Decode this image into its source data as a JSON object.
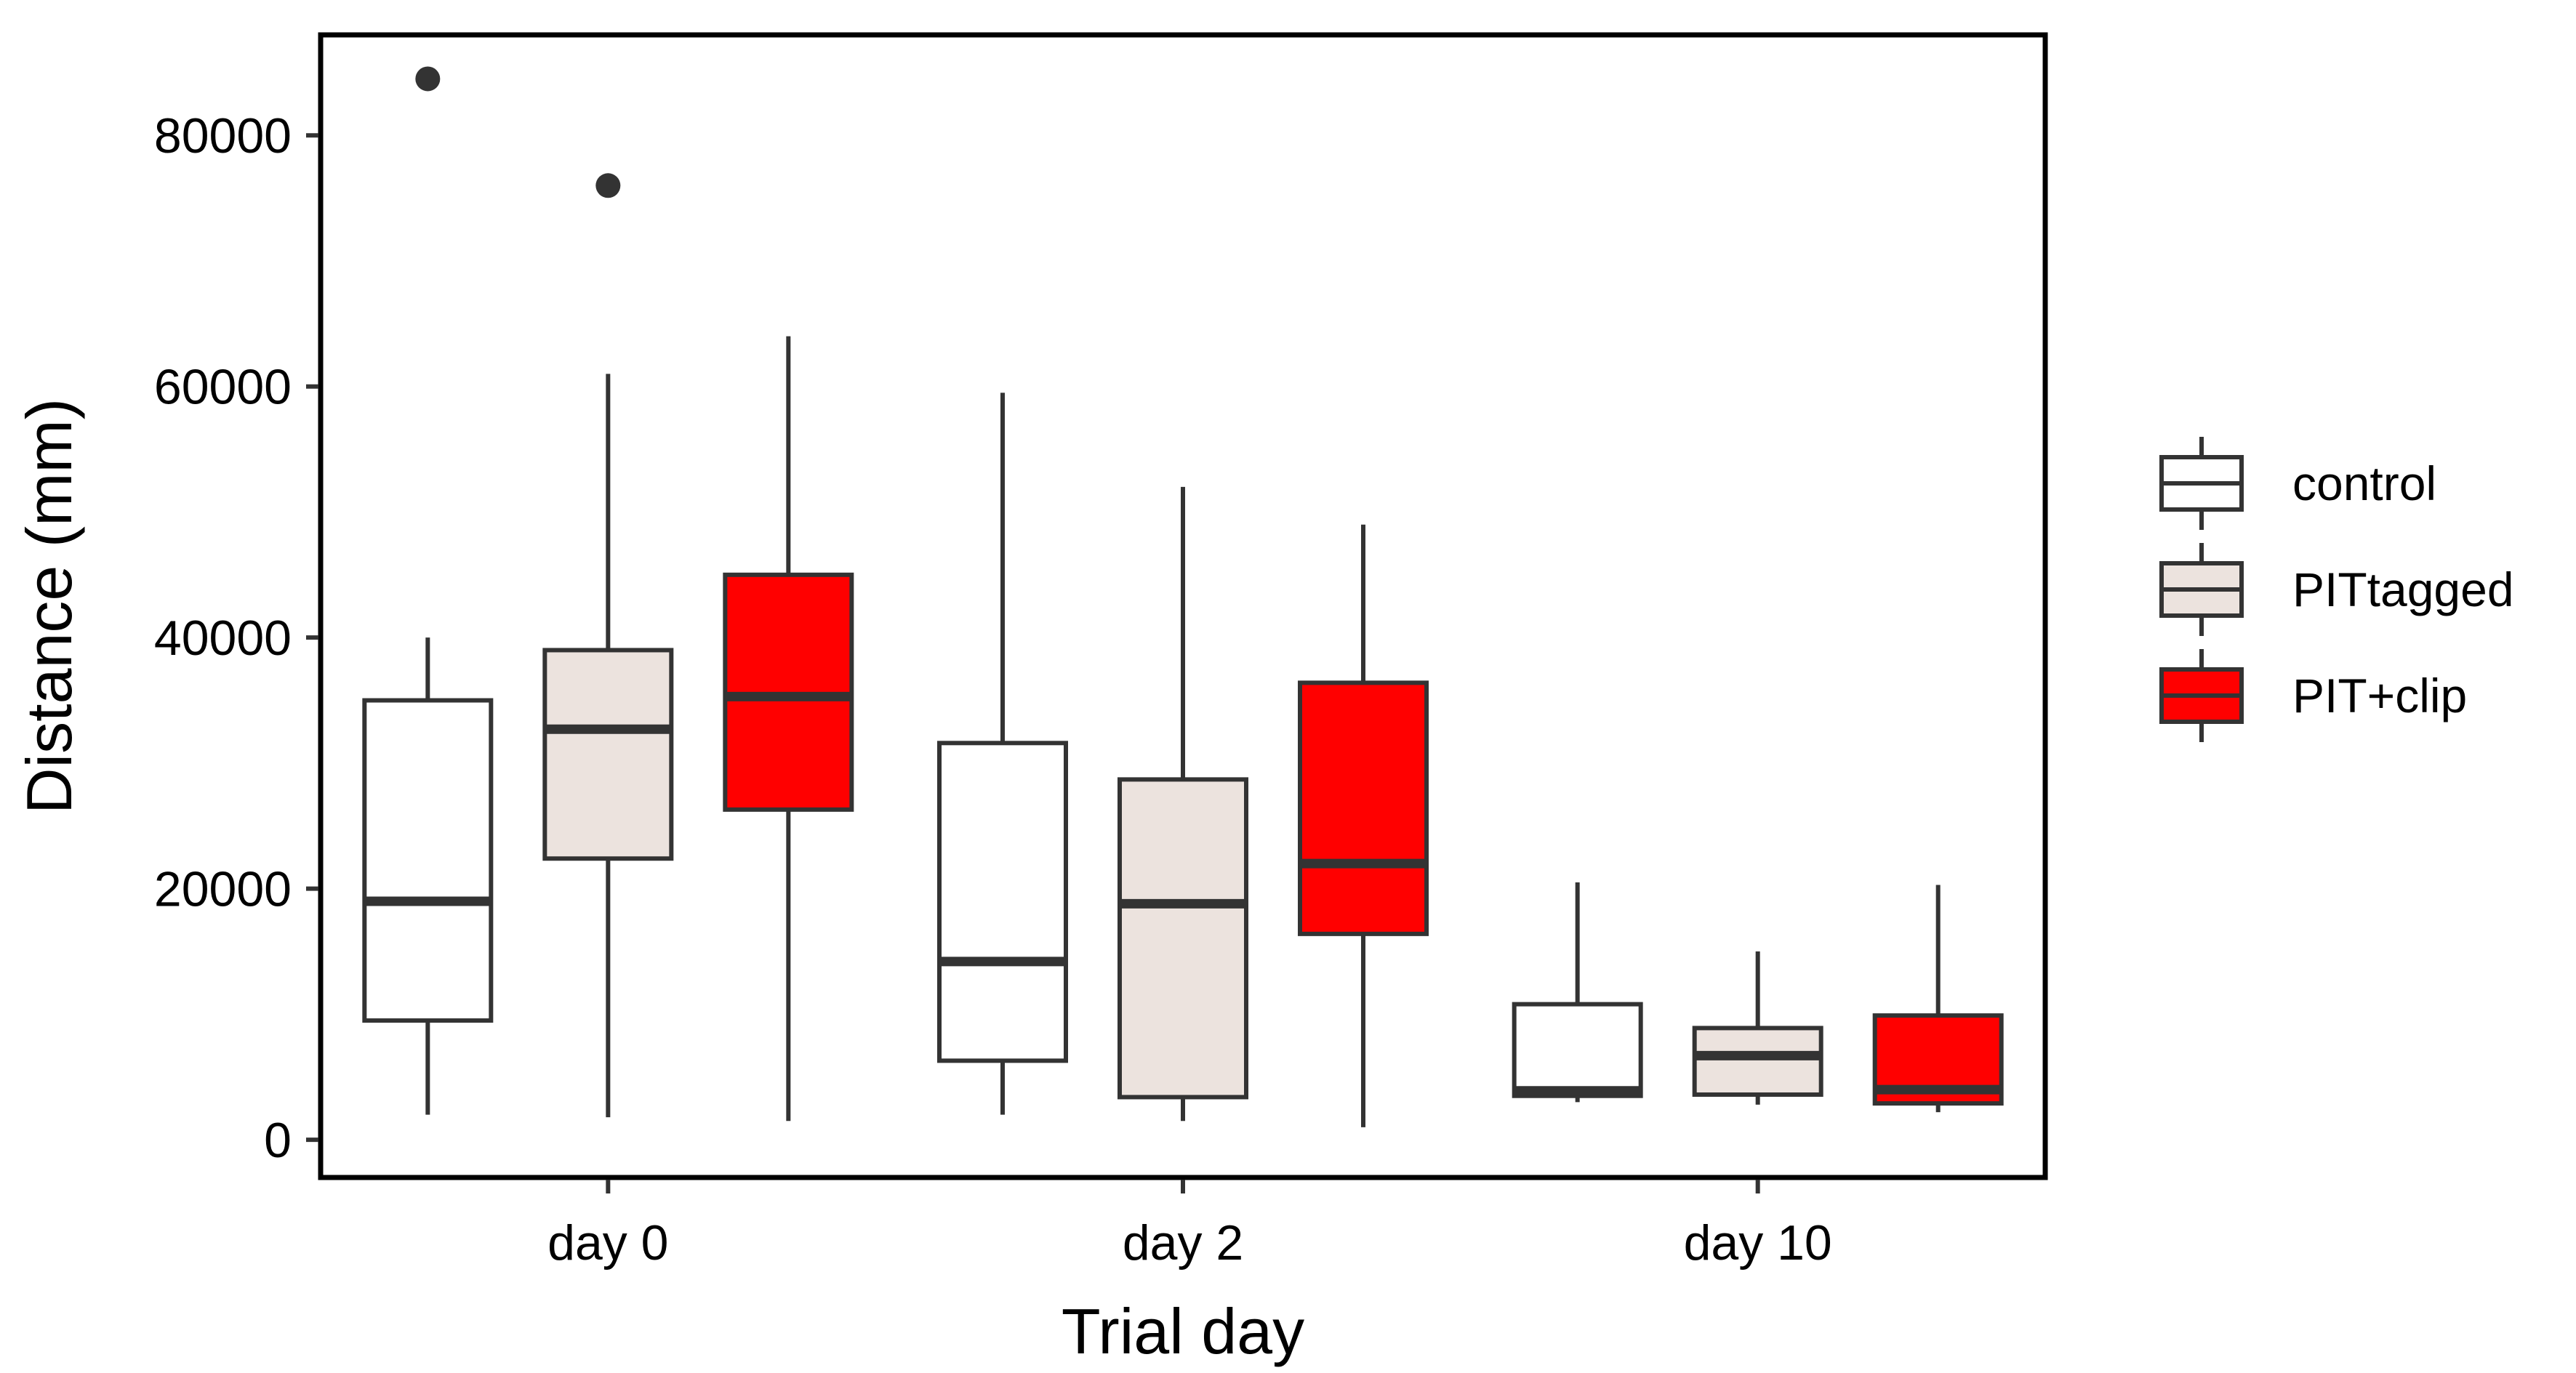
{
  "chart_data": {
    "type": "boxplot",
    "xlabel": "Trial day",
    "ylabel": "Distance (mm)",
    "categories": [
      "day 0",
      "day 2",
      "day 10"
    ],
    "ylim": [
      -3000,
      88000
    ],
    "yticks": [
      0,
      20000,
      40000,
      60000,
      80000
    ],
    "ytick_labels": [
      "0",
      "20000",
      "40000",
      "60000",
      "80000"
    ],
    "grid": false,
    "legend_position": "right",
    "series": [
      {
        "name": "control",
        "color": "#ffffff",
        "boxes": [
          {
            "category": "day 0",
            "whisker_low": 2000,
            "q1": 9500,
            "median": 19000,
            "q3": 35000,
            "whisker_high": 40000,
            "outliers": [
              84500
            ]
          },
          {
            "category": "day 2",
            "whisker_low": 2000,
            "q1": 6300,
            "median": 14200,
            "q3": 31600,
            "whisker_high": 59500,
            "outliers": []
          },
          {
            "category": "day 10",
            "whisker_low": 3000,
            "q1": 3500,
            "median": 3900,
            "q3": 10800,
            "whisker_high": 20500,
            "outliers": []
          }
        ]
      },
      {
        "name": "PITtagged",
        "color": "#ece3de",
        "boxes": [
          {
            "category": "day 0",
            "whisker_low": 1800,
            "q1": 22400,
            "median": 32700,
            "q3": 39000,
            "whisker_high": 61000,
            "outliers": [
              76000
            ]
          },
          {
            "category": "day 2",
            "whisker_low": 1500,
            "q1": 3400,
            "median": 18800,
            "q3": 28700,
            "whisker_high": 52000,
            "outliers": []
          },
          {
            "category": "day 10",
            "whisker_low": 2800,
            "q1": 3600,
            "median": 6700,
            "q3": 8900,
            "whisker_high": 15000,
            "outliers": []
          }
        ]
      },
      {
        "name": "PIT+clip",
        "color": "#ff0000",
        "boxes": [
          {
            "category": "day 0",
            "whisker_low": 1500,
            "q1": 26300,
            "median": 35300,
            "q3": 45000,
            "whisker_high": 64000,
            "outliers": []
          },
          {
            "category": "day 2",
            "whisker_low": 1000,
            "q1": 16400,
            "median": 22000,
            "q3": 36400,
            "whisker_high": 49000,
            "outliers": []
          },
          {
            "category": "day 10",
            "whisker_low": 2200,
            "q1": 2900,
            "median": 4000,
            "q3": 9900,
            "whisker_high": 20300,
            "outliers": []
          }
        ]
      }
    ]
  }
}
